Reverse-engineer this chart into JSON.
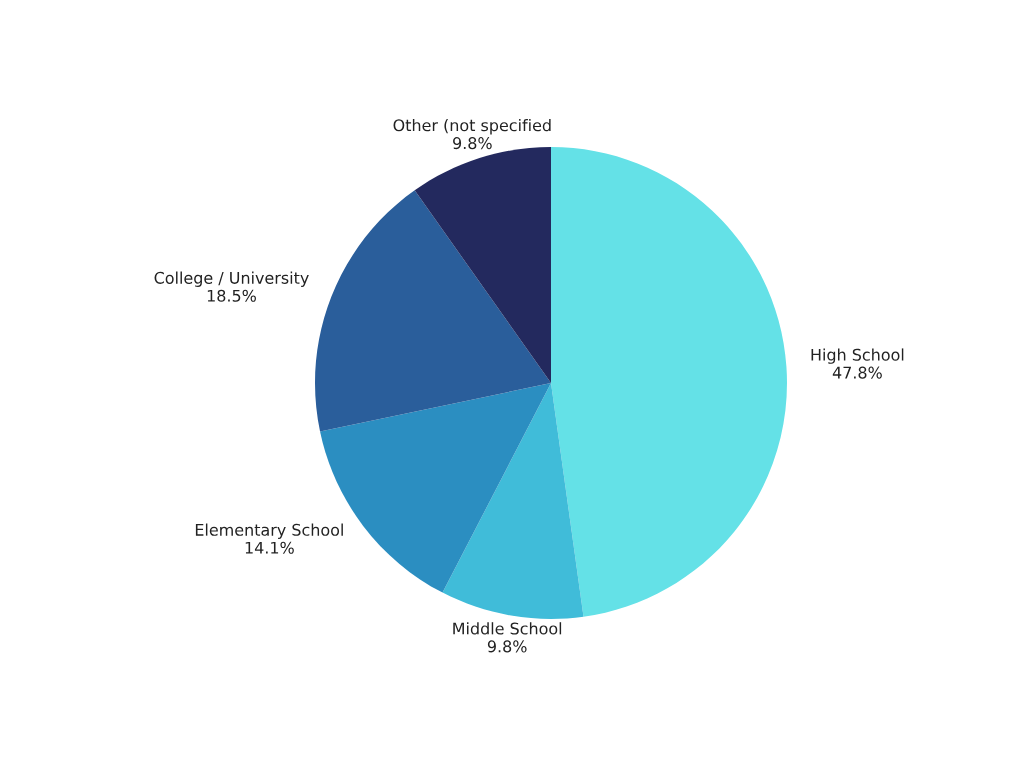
{
  "chart_data": {
    "type": "pie",
    "categories": [
      "High School",
      "Middle School",
      "Elementary School",
      "College / University",
      "Other (not specified"
    ],
    "values": [
      47.8,
      9.8,
      14.1,
      18.5,
      9.8
    ],
    "value_labels": [
      "47.8%",
      "9.8%",
      "14.1%",
      "18.5%",
      "9.8%"
    ],
    "colors": [
      "#64e1e7",
      "#40bcd9",
      "#2b8ec1",
      "#2a5e9b",
      "#23295e"
    ],
    "legend": false
  }
}
